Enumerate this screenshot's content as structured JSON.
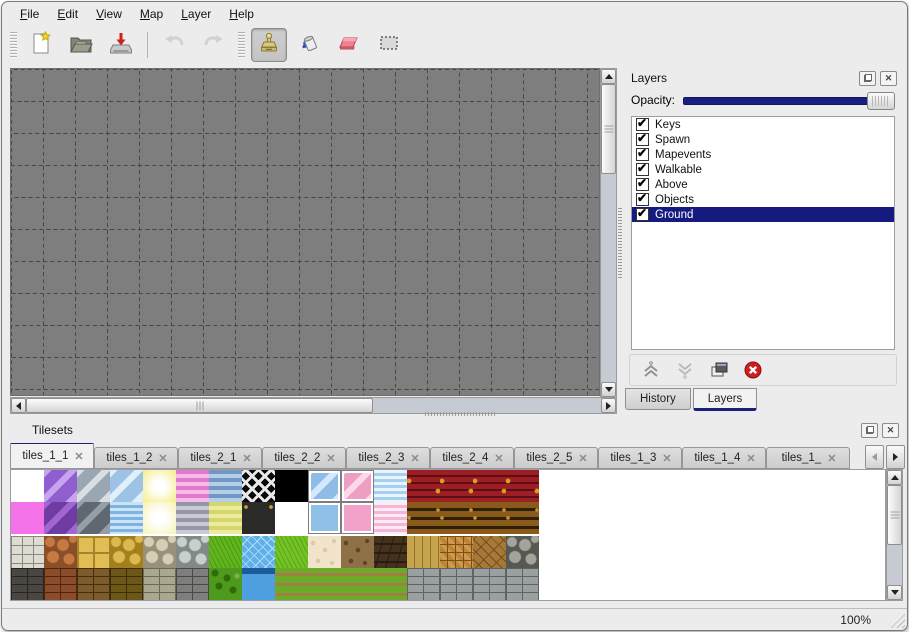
{
  "menu": {
    "items": [
      "File",
      "Edit",
      "View",
      "Map",
      "Layer",
      "Help"
    ]
  },
  "toolbar": {
    "buttons": [
      {
        "icon": "new-file-icon",
        "group": 1
      },
      {
        "icon": "open-file-icon",
        "group": 1
      },
      {
        "icon": "save-file-icon",
        "group": 1
      },
      {
        "icon": "undo-icon",
        "group": 1,
        "disabled": true
      },
      {
        "icon": "redo-icon",
        "group": 1,
        "disabled": true
      },
      {
        "icon": "stamp-tool-icon",
        "group": 2,
        "active": true
      },
      {
        "icon": "fill-tool-icon",
        "group": 2
      },
      {
        "icon": "eraser-tool-icon",
        "group": 2
      },
      {
        "icon": "select-tool-icon",
        "group": 2
      }
    ]
  },
  "layers_panel": {
    "title": "Layers",
    "opacity_label": "Opacity:",
    "opacity_percent": 100,
    "layers": [
      {
        "name": "Keys",
        "checked": true,
        "selected": false
      },
      {
        "name": "Spawn",
        "checked": true,
        "selected": false
      },
      {
        "name": "Mapevents",
        "checked": true,
        "selected": false
      },
      {
        "name": "Walkable",
        "checked": true,
        "selected": false
      },
      {
        "name": "Above",
        "checked": true,
        "selected": false
      },
      {
        "name": "Objects",
        "checked": true,
        "selected": false
      },
      {
        "name": "Ground",
        "checked": true,
        "selected": true
      }
    ],
    "buttons": [
      "raise-layer-icon",
      "lower-layer-icon",
      "duplicate-layer-icon",
      "delete-layer-icon"
    ]
  },
  "dock_tabs": [
    {
      "label": "History",
      "active": false
    },
    {
      "label": "Layers",
      "active": true
    }
  ],
  "tilesets_panel": {
    "title": "Tilesets",
    "tabs": [
      {
        "label": "tiles_1_1",
        "active": true
      },
      {
        "label": "tiles_1_2",
        "active": false
      },
      {
        "label": "tiles_2_1",
        "active": false
      },
      {
        "label": "tiles_2_2",
        "active": false
      },
      {
        "label": "tiles_2_3",
        "active": false
      },
      {
        "label": "tiles_2_4",
        "active": false
      },
      {
        "label": "tiles_2_5",
        "active": false
      },
      {
        "label": "tiles_1_3",
        "active": false
      },
      {
        "label": "tiles_1_4",
        "active": false
      },
      {
        "label": "tiles_1_",
        "active": false
      }
    ],
    "tile_rows": [
      [
        {
          "p": "blank"
        },
        {
          "p": "crystal",
          "c1": "#8f5fd0",
          "c2": "#c9a4ee"
        },
        {
          "p": "crystal",
          "c1": "#9aa6b2",
          "c2": "#d9dee3"
        },
        {
          "p": "crystal",
          "c1": "#9cc2e6",
          "c2": "#dff0fb"
        },
        {
          "p": "glow",
          "c1": "#f6ee8e"
        },
        {
          "p": "hstripes",
          "c1": "#e378cf",
          "c2": "#f6bce8"
        },
        {
          "p": "hstripes",
          "c1": "#7397c5",
          "c2": "#b4cfe8"
        },
        {
          "p": "lattice",
          "c1": "#0a0a0a",
          "c2": "#e8e8e8"
        },
        {
          "p": "solid",
          "c1": "#000000"
        },
        {
          "p": "crystal",
          "c1": "#8fbce6",
          "c2": "#d4eafa",
          "border": true
        },
        {
          "p": "crystal",
          "c1": "#ee9ec2",
          "c2": "#fbd9e8",
          "border": true
        },
        {
          "p": "waves",
          "c1": "#a6cff0",
          "c2": "#e9f5fd"
        },
        {
          "p": "brickwall",
          "c1": "#9c1f26",
          "c2": "#5e0d12"
        },
        {
          "p": "brickwall",
          "c1": "#9c1f26",
          "c2": "#5e0d12"
        },
        {
          "p": "brickwall",
          "c1": "#9c1f26",
          "c2": "#5e0d12"
        },
        {
          "p": "brickwall",
          "c1": "#9c1f26",
          "c2": "#5e0d12"
        }
      ],
      [
        {
          "p": "solid",
          "c1": "#f473e9"
        },
        {
          "p": "crystal",
          "c1": "#6f3da2",
          "c2": "#a266d2"
        },
        {
          "p": "crystal",
          "c1": "#5f6870",
          "c2": "#959da6"
        },
        {
          "p": "waves",
          "c1": "#7fb2e0",
          "c2": "#c8e4f6"
        },
        {
          "p": "glow",
          "c1": "#f8f3bb"
        },
        {
          "p": "hstripes",
          "c1": "#9595a5",
          "c2": "#cacad4"
        },
        {
          "p": "hstripes",
          "c1": "#d6d66e",
          "c2": "#ecec9f"
        },
        {
          "p": "panel",
          "c1": "#2a2a28",
          "c2": "#c8a040"
        },
        {
          "p": "blank"
        },
        {
          "p": "solid",
          "c1": "#8fc0e8",
          "border": true
        },
        {
          "p": "solid",
          "c1": "#f2a2c8",
          "border": true
        },
        {
          "p": "waves",
          "c1": "#f4b6d6",
          "c2": "#fdeaf3"
        },
        {
          "p": "logs",
          "c1": "#8a5a1a",
          "c2": "#2e2006"
        },
        {
          "p": "logs",
          "c1": "#8a5a1a",
          "c2": "#2e2006"
        },
        {
          "p": "logs",
          "c1": "#8a5a1a",
          "c2": "#2e2006"
        },
        {
          "p": "logs",
          "c1": "#8a5a1a",
          "c2": "#2e2006"
        }
      ],
      [
        {
          "p": "paving",
          "c1": "#dddbd2",
          "c2": "#8a887e"
        },
        {
          "p": "stones",
          "c1": "#c47a42",
          "c2": "#8a4f28"
        },
        {
          "p": "grid4",
          "c1": "#e2bc55",
          "c2": "#a8832a"
        },
        {
          "p": "stones",
          "c1": "#dcb84e",
          "c2": "#a2801e"
        },
        {
          "p": "stones",
          "c1": "#d5cdb4",
          "c2": "#97907a"
        },
        {
          "p": "stones",
          "c1": "#c9cfcc",
          "c2": "#828a88"
        },
        {
          "p": "grass",
          "c1": "#63b51e",
          "c2": "#4e9a12"
        },
        {
          "p": "water",
          "c1": "#5fb0ea",
          "c2": "#bfe4fb"
        },
        {
          "p": "grass",
          "c1": "#74c226",
          "c2": "#5aa816"
        },
        {
          "p": "speckle",
          "c1": "#f2e3cb",
          "c2": "#dcc9a8"
        },
        {
          "p": "speckle",
          "c1": "#8f7148",
          "c2": "#5e4526"
        },
        {
          "p": "shingles",
          "c1": "#44311e",
          "c2": "#2a1c0e"
        },
        {
          "p": "planks",
          "c1": "#c7a44e",
          "c2": "#8f7326"
        },
        {
          "p": "weave",
          "c1": "#c08430",
          "c2": "#7e4f14"
        },
        {
          "p": "herring",
          "c1": "#a87838",
          "c2": "#6e4c1a"
        },
        {
          "p": "stones",
          "c1": "#a3a49c",
          "c2": "#565852"
        }
      ],
      [
        {
          "p": "wall",
          "c1": "#4a4642",
          "c2": "#28241f"
        },
        {
          "p": "wall",
          "c1": "#8a4c2a",
          "c2": "#50240e"
        },
        {
          "p": "wall",
          "c1": "#7c5c2c",
          "c2": "#452e10"
        },
        {
          "p": "wall",
          "c1": "#6d5718",
          "c2": "#3c2e08"
        },
        {
          "p": "wall",
          "c1": "#a9a78e",
          "c2": "#6b6a55"
        },
        {
          "p": "wall",
          "c1": "#7e7e7c",
          "c2": "#484846"
        },
        {
          "p": "hedge",
          "c1": "#4d9a1d",
          "c2": "#2f6b0c"
        },
        {
          "p": "wateredge",
          "c1": "#4d9fe0",
          "c2": "#1c5c9a"
        },
        {
          "p": "rows",
          "c1": "#6cab28",
          "c2": "#a07f46"
        },
        {
          "p": "rows",
          "c1": "#6cab28",
          "c2": "#a07f46"
        },
        {
          "p": "rows",
          "c1": "#6cab28",
          "c2": "#a07f46"
        },
        {
          "p": "rows",
          "c1": "#6cab28",
          "c2": "#a07f46"
        },
        {
          "p": "wall",
          "c1": "#9aa0a0",
          "c2": "#5e6464"
        },
        {
          "p": "wall",
          "c1": "#9aa0a0",
          "c2": "#5e6464"
        },
        {
          "p": "wall",
          "c1": "#9aa0a0",
          "c2": "#5e6464"
        },
        {
          "p": "wall",
          "c1": "#9aa0a0",
          "c2": "#5e6464"
        }
      ]
    ]
  },
  "status_bar": {
    "zoom": "100%"
  },
  "colors": {
    "accent": "#1b2178",
    "selection": "#151b7e",
    "canvas_gray": "#7e7e7e",
    "delete_red": "#cc2020"
  }
}
